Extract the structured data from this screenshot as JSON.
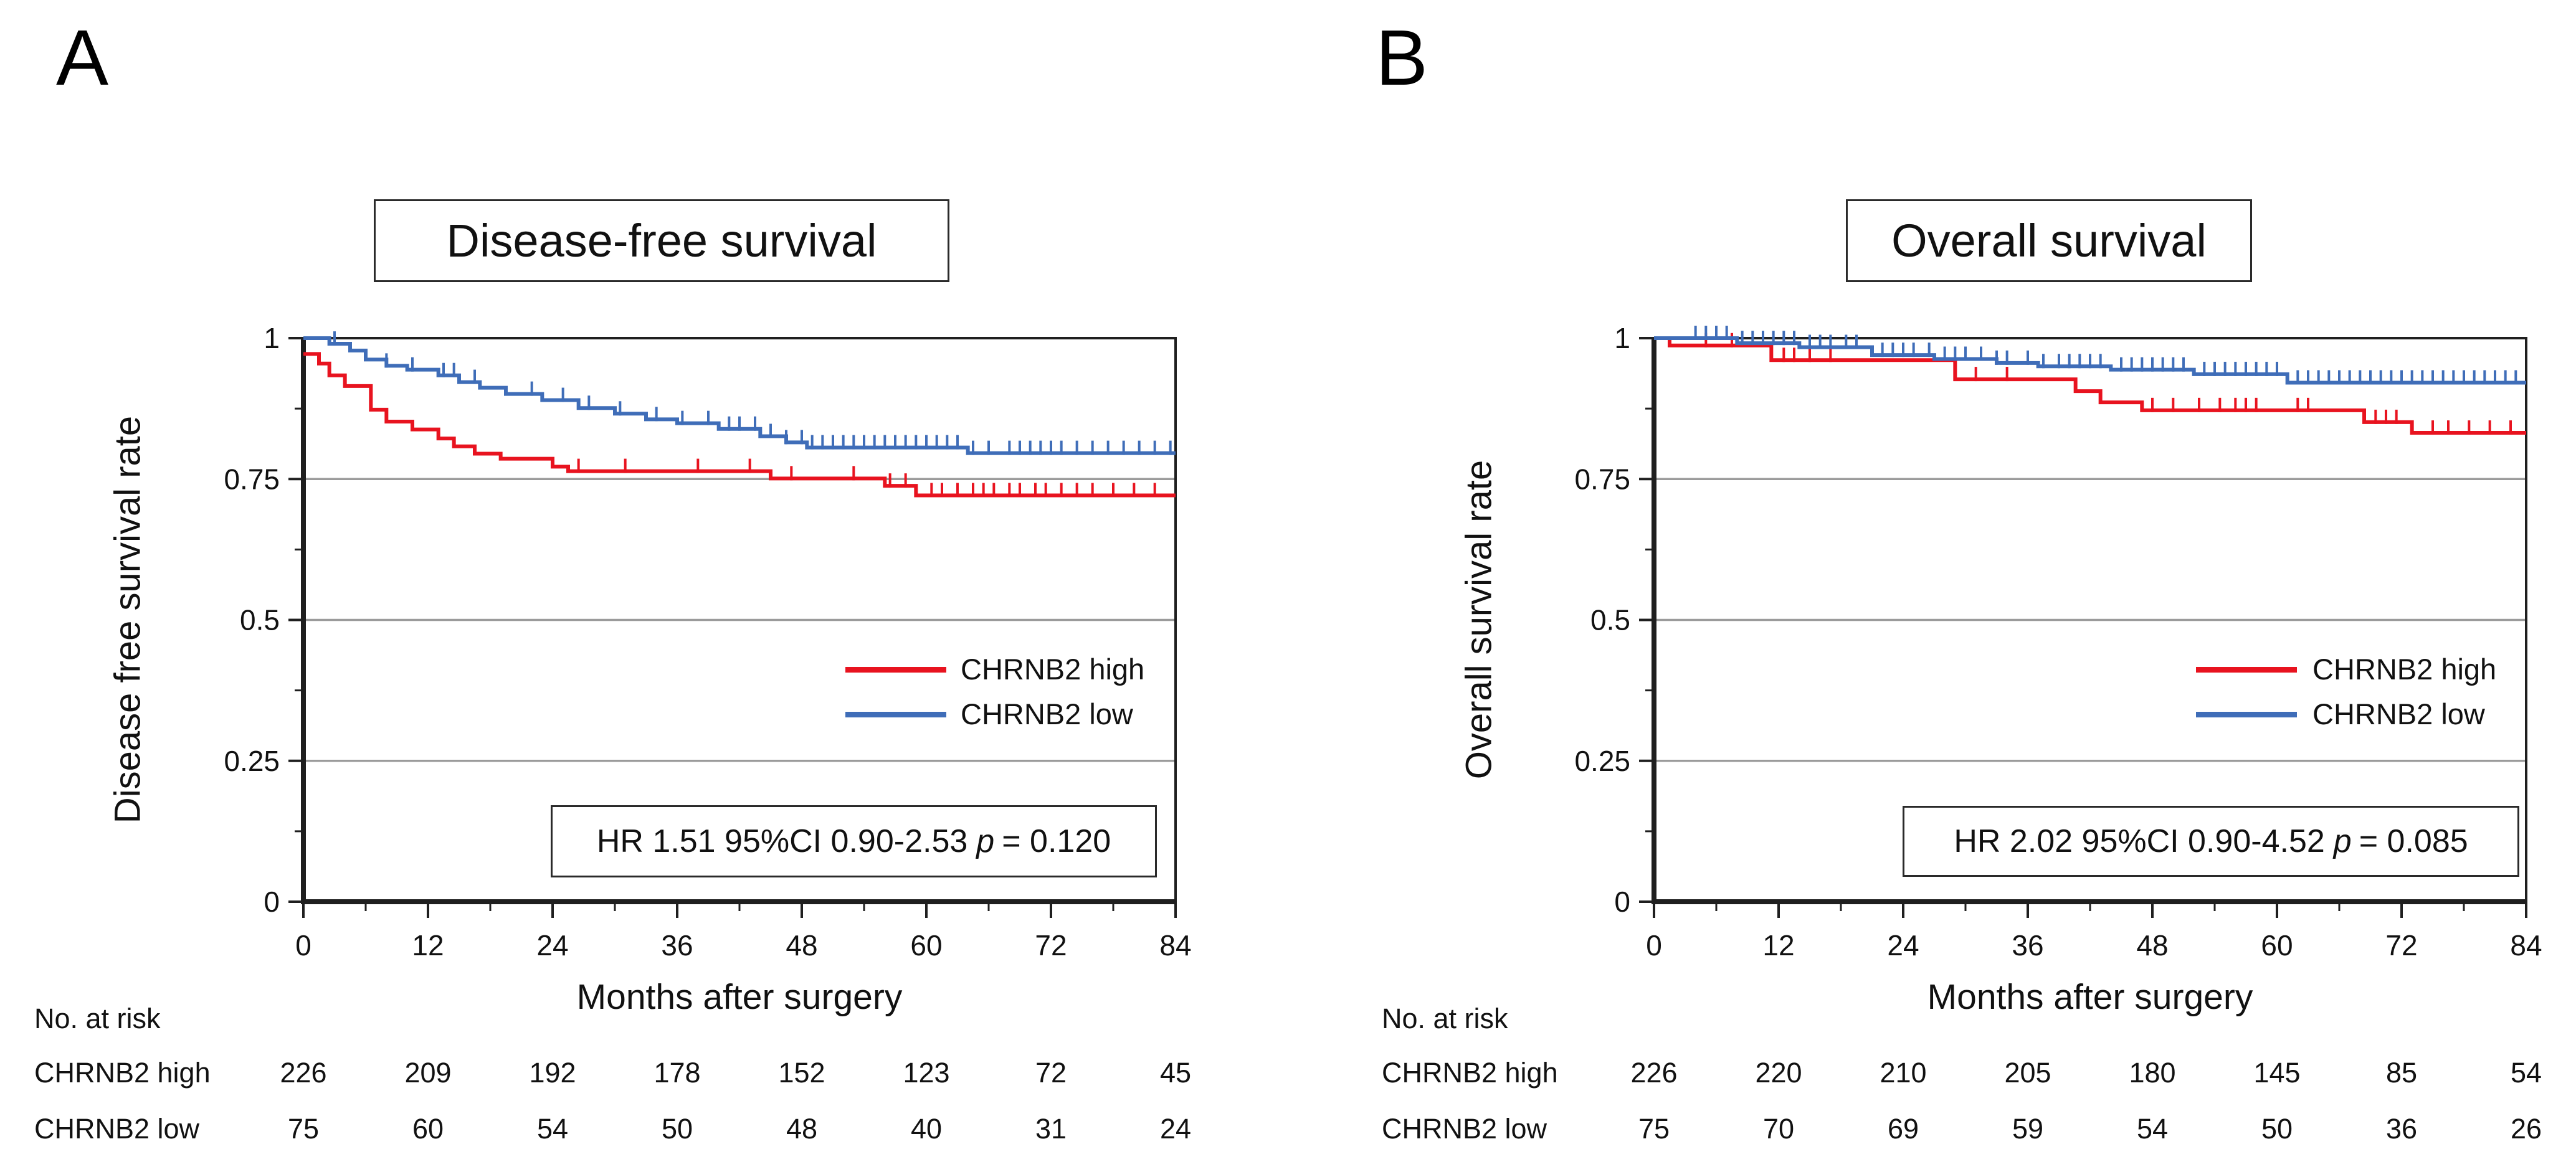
{
  "figure": {
    "panel_letters": [
      "A",
      "B"
    ]
  },
  "colors": {
    "high": "#e8131f",
    "low": "#3f6db8",
    "grid": "#9b9b9b",
    "axis": "#1f1f1f"
  },
  "chart_data": [
    {
      "type": "line",
      "subtype": "kaplan-meier-step",
      "title": "Disease-free survival",
      "xlabel": "Months after surgery",
      "ylabel": "Disease free survival rate",
      "xlim": [
        0,
        84
      ],
      "ylim": [
        0,
        1
      ],
      "xticks": [
        0,
        12,
        24,
        36,
        48,
        60,
        72,
        84
      ],
      "xtick_labels": [
        "0",
        "12",
        "24",
        "36",
        "48",
        "60",
        "72",
        "84"
      ],
      "yticks": [
        0,
        0.25,
        0.5,
        0.75,
        1
      ],
      "ytick_labels": [
        "0",
        "0.25",
        "0.5",
        "0.75",
        "1"
      ],
      "grid": "horizontal gridlines at 0.25, 0.5, 0.75",
      "legend_position": "inside right-center",
      "annotation": "HR 1.51 95%CI 0.90-2.53 p = 0.120",
      "annotation_parts": {
        "prefix": "HR 1.51 95%CI 0.90-2.53",
        "p": "p",
        "rest": "= 0.120"
      },
      "series": [
        {
          "name": "CHRNB2 high",
          "color": "#e8131f",
          "steps": [
            [
              0,
              0.972
            ],
            [
              1.5,
              0.955
            ],
            [
              2.5,
              0.934
            ],
            [
              4,
              0.915
            ],
            [
              6.5,
              0.873
            ],
            [
              8,
              0.852
            ],
            [
              10.5,
              0.838
            ],
            [
              13,
              0.822
            ],
            [
              14.5,
              0.808
            ],
            [
              16.5,
              0.795
            ],
            [
              19,
              0.786
            ],
            [
              24,
              0.772
            ],
            [
              25.5,
              0.764
            ],
            [
              45,
              0.751
            ],
            [
              56,
              0.738
            ],
            [
              59,
              0.721
            ],
            [
              84,
              0.721
            ]
          ],
          "censor_marks": [
            26.5,
            31,
            38,
            43,
            47,
            53,
            56.5,
            58,
            60.5,
            61.5,
            63,
            64.5,
            65.5,
            66.5,
            68,
            69,
            70.5,
            71.5,
            73,
            74.5,
            76,
            78,
            80,
            82
          ]
        },
        {
          "name": "CHRNB2 low",
          "color": "#3f6db8",
          "steps": [
            [
              0,
              1.0
            ],
            [
              2.5,
              0.99
            ],
            [
              4.5,
              0.978
            ],
            [
              6,
              0.962
            ],
            [
              8,
              0.951
            ],
            [
              10,
              0.944
            ],
            [
              13,
              0.934
            ],
            [
              15,
              0.922
            ],
            [
              17,
              0.912
            ],
            [
              19.5,
              0.901
            ],
            [
              23,
              0.89
            ],
            [
              26.5,
              0.876
            ],
            [
              30,
              0.866
            ],
            [
              33,
              0.856
            ],
            [
              36,
              0.849
            ],
            [
              40,
              0.839
            ],
            [
              44,
              0.826
            ],
            [
              46.5,
              0.815
            ],
            [
              48.5,
              0.806
            ],
            [
              64,
              0.796
            ],
            [
              84,
              0.796
            ]
          ],
          "censor_marks": [
            3,
            8,
            10.5,
            13.5,
            14.5,
            16.5,
            22,
            25,
            27.5,
            30.5,
            34,
            36.5,
            39,
            41,
            42,
            43.5,
            45,
            46.5,
            48,
            49,
            50,
            51,
            52,
            53,
            54,
            55,
            56,
            57,
            58,
            59,
            60,
            61,
            62,
            63,
            64.5,
            66,
            68,
            69,
            70,
            71,
            72,
            73,
            74.5,
            76,
            77.5,
            79,
            80.5,
            82,
            83.5
          ]
        }
      ],
      "risk_table": {
        "heading": "No. at risk",
        "rows": [
          {
            "label": "CHRNB2 high",
            "values": [
              226,
              209,
              192,
              178,
              152,
              123,
              72,
              45
            ]
          },
          {
            "label": "CHRNB2 low",
            "values": [
              75,
              60,
              54,
              50,
              48,
              40,
              31,
              24
            ]
          }
        ]
      }
    },
    {
      "type": "line",
      "subtype": "kaplan-meier-step",
      "title": "Overall survival",
      "xlabel": "Months after surgery",
      "ylabel": "Overall survival rate",
      "xlim": [
        0,
        84
      ],
      "ylim": [
        0,
        1
      ],
      "xticks": [
        0,
        12,
        24,
        36,
        48,
        60,
        72,
        84
      ],
      "xtick_labels": [
        "0",
        "12",
        "24",
        "36",
        "48",
        "60",
        "72",
        "84"
      ],
      "yticks": [
        0,
        0.25,
        0.5,
        0.75,
        1
      ],
      "ytick_labels": [
        "0",
        "0.25",
        "0.5",
        "0.75",
        "1"
      ],
      "grid": "horizontal gridlines at 0.25, 0.5, 0.75",
      "legend_position": "inside right-center",
      "annotation": "HR 2.02 95%CI 0.90-4.52 p = 0.085",
      "annotation_parts": {
        "prefix": "HR 2.02 95%CI 0.90-4.52",
        "p": "p",
        "rest": "= 0.085"
      },
      "series": [
        {
          "name": "CHRNB2 high",
          "color": "#e8131f",
          "steps": [
            [
              0,
              1.0
            ],
            [
              1.5,
              0.987
            ],
            [
              11.3,
              0.961
            ],
            [
              29,
              0.927
            ],
            [
              40.6,
              0.906
            ],
            [
              43,
              0.886
            ],
            [
              47,
              0.872
            ],
            [
              68.4,
              0.851
            ],
            [
              73,
              0.832
            ],
            [
              84,
              0.832
            ]
          ],
          "censor_marks": [
            5,
            7.5,
            12.5,
            13.5,
            15,
            17,
            31,
            34,
            48,
            50,
            52.5,
            54.5,
            56,
            57,
            58,
            62,
            63,
            69.5,
            70.5,
            71.5,
            75,
            76.5,
            78.5,
            80.5,
            82.5
          ]
        },
        {
          "name": "CHRNB2 low",
          "color": "#3f6db8",
          "steps": [
            [
              0,
              1.0
            ],
            [
              8,
              0.991
            ],
            [
              14,
              0.984
            ],
            [
              21,
              0.97
            ],
            [
              27,
              0.963
            ],
            [
              33,
              0.956
            ],
            [
              37,
              0.95
            ],
            [
              44,
              0.944
            ],
            [
              52,
              0.936
            ],
            [
              61,
              0.921
            ],
            [
              84,
              0.921
            ]
          ],
          "censor_marks": [
            4,
            5,
            6,
            7,
            8.5,
            9.5,
            10.5,
            11.5,
            12.5,
            13.5,
            15,
            16,
            17,
            18.5,
            19.5,
            22,
            23,
            24,
            25,
            26.5,
            28,
            29,
            30,
            31.5,
            33,
            34,
            36,
            37.5,
            39,
            40,
            41,
            42,
            43,
            45,
            46,
            47,
            48,
            49,
            50,
            51,
            53,
            54,
            55,
            56,
            57,
            58,
            59,
            60,
            62,
            63,
            64,
            65,
            66,
            67,
            68,
            69,
            70,
            71,
            72,
            73,
            74,
            75,
            76,
            77,
            78,
            79,
            80,
            81,
            82,
            83
          ]
        }
      ],
      "risk_table": {
        "heading": "No. at risk",
        "rows": [
          {
            "label": "CHRNB2 high",
            "values": [
              226,
              220,
              210,
              205,
              180,
              145,
              85,
              54
            ]
          },
          {
            "label": "CHRNB2 low",
            "values": [
              75,
              70,
              69,
              59,
              54,
              50,
              36,
              26
            ]
          }
        ]
      }
    }
  ]
}
